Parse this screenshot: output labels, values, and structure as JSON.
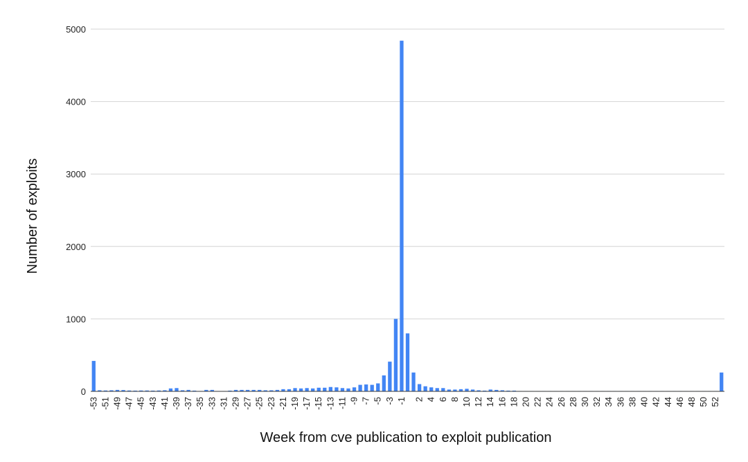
{
  "chart_data": {
    "type": "bar",
    "title": "",
    "xlabel": "Week from cve publication to exploit publication",
    "ylabel": "Number of exploits",
    "ylim": [
      0,
      5000
    ],
    "yticks": [
      0,
      1000,
      2000,
      3000,
      4000,
      5000
    ],
    "grid": true,
    "legend": "none",
    "bar_color": "#4285f4",
    "categories": [
      -53,
      -52,
      -51,
      -50,
      -49,
      -48,
      -47,
      -46,
      -45,
      -44,
      -43,
      -42,
      -41,
      -40,
      -39,
      -38,
      -37,
      -36,
      -35,
      -34,
      -33,
      -32,
      -31,
      -30,
      -29,
      -28,
      -27,
      -26,
      -25,
      -24,
      -23,
      -22,
      -21,
      -20,
      -19,
      -18,
      -17,
      -16,
      -15,
      -14,
      -13,
      -12,
      -11,
      -10,
      -9,
      -8,
      -7,
      -6,
      -5,
      -4,
      -3,
      -2,
      -1,
      0,
      1,
      2,
      3,
      4,
      5,
      6,
      7,
      8,
      9,
      10,
      11,
      12,
      13,
      14,
      15,
      16,
      17,
      18,
      19,
      20,
      21,
      22,
      23,
      24,
      25,
      26,
      27,
      28,
      29,
      30,
      31,
      32,
      33,
      34,
      35,
      36,
      37,
      38,
      39,
      40,
      41,
      42,
      43,
      44,
      45,
      46,
      47,
      48,
      49,
      50,
      51,
      52,
      53
    ],
    "values": [
      420,
      15,
      12,
      15,
      20,
      18,
      12,
      10,
      12,
      12,
      10,
      12,
      15,
      40,
      45,
      15,
      20,
      10,
      5,
      20,
      20,
      5,
      5,
      10,
      20,
      20,
      20,
      20,
      20,
      15,
      15,
      20,
      30,
      30,
      45,
      40,
      45,
      40,
      50,
      50,
      60,
      55,
      45,
      40,
      55,
      90,
      95,
      90,
      110,
      220,
      410,
      1000,
      4840,
      800,
      260,
      100,
      70,
      55,
      45,
      45,
      25,
      25,
      30,
      35,
      25,
      15,
      10,
      25,
      20,
      15,
      10,
      10,
      5,
      5,
      5,
      5,
      5,
      5,
      5,
      5,
      5,
      5,
      5,
      5,
      5,
      5,
      5,
      5,
      5,
      5,
      5,
      5,
      5,
      5,
      5,
      5,
      5,
      5,
      5,
      5,
      5,
      5,
      5,
      5,
      5,
      5,
      260
    ],
    "tick_labels": [
      "-53",
      "-51",
      "-49",
      "-47",
      "-45",
      "-43",
      "-41",
      "-39",
      "-37",
      "-35",
      "-33",
      "-31",
      "-29",
      "-27",
      "-25",
      "-23",
      "-21",
      "-19",
      "-17",
      "-15",
      "-13",
      "-11",
      "-9",
      "-7",
      "-5",
      "-3",
      "-1",
      "2",
      "4",
      "6",
      "8",
      "10",
      "12",
      "14",
      "16",
      "18",
      "20",
      "22",
      "24",
      "26",
      "28",
      "30",
      "32",
      "34",
      "36",
      "38",
      "40",
      "42",
      "44",
      "46",
      "48",
      "50",
      "52"
    ]
  }
}
